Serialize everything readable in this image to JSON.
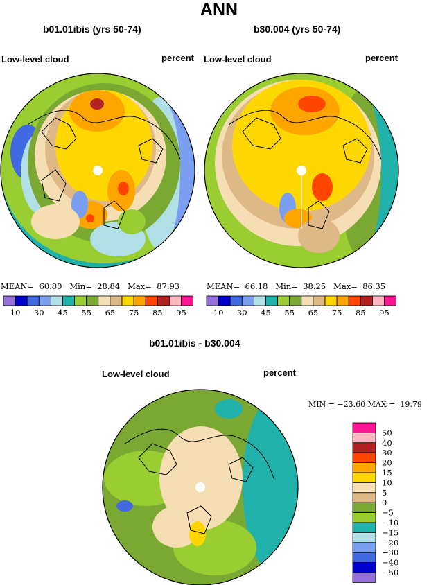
{
  "title": "ANN",
  "panels": [
    {
      "case": "b01.01ibis (yrs 50-74)",
      "variable": "Low-level cloud",
      "units": "percent",
      "stats": {
        "mean_label": "MEAN=",
        "mean": "60.80",
        "min_label": "Min=",
        "min": "28.84",
        "max_label": "Max=",
        "max": "87.93"
      }
    },
    {
      "case": "b30.004 (yrs 50-74)",
      "variable": "Low-level cloud",
      "units": "percent",
      "stats": {
        "mean_label": "MEAN=",
        "mean": "66.18",
        "min_label": "Min=",
        "min": "38.25",
        "max_label": "Max=",
        "max": "86.35"
      }
    }
  ],
  "colorbar": {
    "colors": [
      "#9370db",
      "#0000cd",
      "#4169e1",
      "#7b9ff0",
      "#b0e0e6",
      "#20b2aa",
      "#9acd32",
      "#7ba832",
      "#f5deb3",
      "#deb887",
      "#ffd700",
      "#ffa500",
      "#ff4500",
      "#b22222",
      "#ffb6c1",
      "#ff1493"
    ],
    "tick_labels": [
      "10",
      "30",
      "45",
      "55",
      "65",
      "75",
      "85",
      "95"
    ]
  },
  "difference": {
    "title": "b01.01ibis - b30.004",
    "variable": "Low-level cloud",
    "units": "percent",
    "min_max": "MIN = −23.60 MAX =  19.79",
    "legend": {
      "colors": [
        "#ff1493",
        "#ffb6c1",
        "#b22222",
        "#ff4500",
        "#ffa500",
        "#ffd700",
        "#f5deb3",
        "#deb887",
        "#7ba832",
        "#9acd32",
        "#20b2aa",
        "#b0e0e6",
        "#7b9ff0",
        "#4169e1",
        "#0000cd",
        "#9370db"
      ],
      "labels": [
        "50",
        "40",
        "30",
        "20",
        "15",
        "10",
        "5",
        "0",
        "−5",
        "−10",
        "−15",
        "−20",
        "−30",
        "−40",
        "−50"
      ]
    }
  }
}
